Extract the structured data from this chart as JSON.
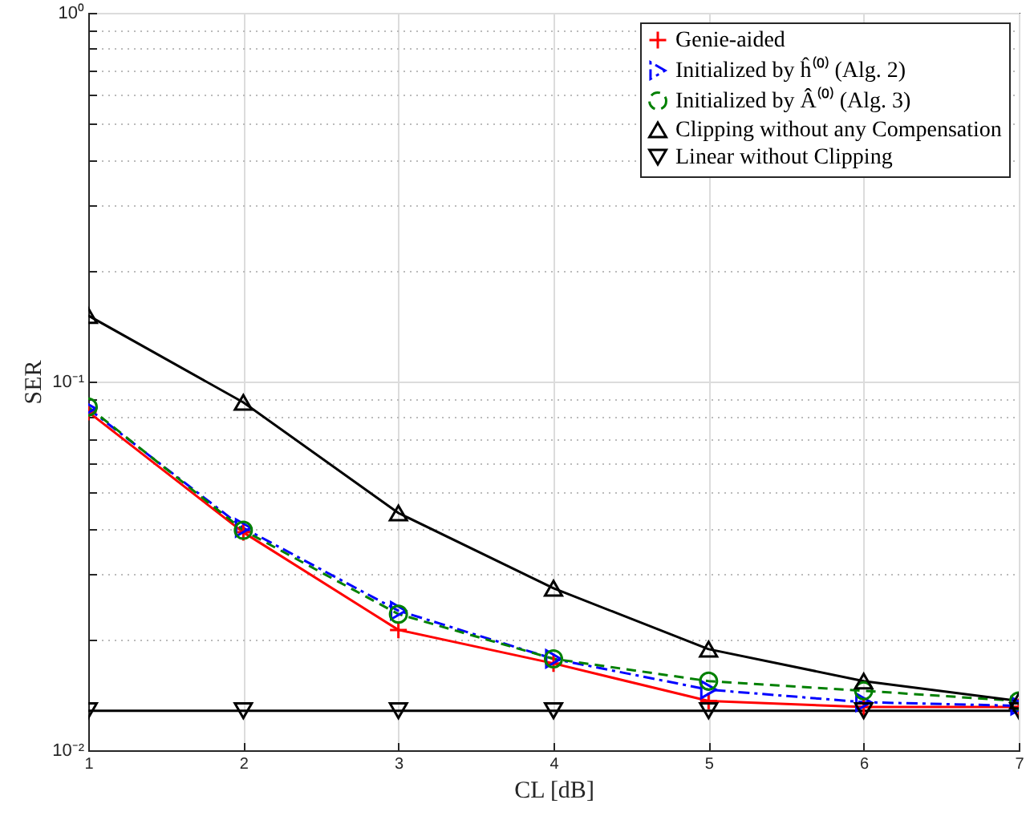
{
  "chart_data": {
    "type": "line",
    "xlabel": "CL [dB]",
    "ylabel": "SER",
    "x": [
      1,
      2,
      3,
      4,
      5,
      6,
      7
    ],
    "series": [
      {
        "name": "Genie-aided",
        "color": "#ff0000",
        "marker": "cross",
        "line_style": "solid",
        "values": [
          0.0827,
          0.039,
          0.0212,
          0.0172,
          0.0136,
          0.0131,
          0.0131
        ]
      },
      {
        "name": "Initialized by ĥ⁽⁰⁾ (Alg. 2)",
        "color": "#0000ff",
        "marker": "triangle-right",
        "line_style": "dashdot",
        "values": [
          0.0845,
          0.0401,
          0.0239,
          0.0177,
          0.0146,
          0.0135,
          0.0132
        ]
      },
      {
        "name": "Initialized by Â⁽⁰⁾ (Alg. 3)",
        "color": "#008000",
        "marker": "circle",
        "line_style": "dashed",
        "values": [
          0.0853,
          0.0395,
          0.0234,
          0.0177,
          0.0154,
          0.0145,
          0.0136
        ]
      },
      {
        "name": "Clipping without any Compensation",
        "color": "#000000",
        "marker": "triangle-up",
        "line_style": "solid",
        "values": [
          0.151,
          0.0878,
          0.044,
          0.0275,
          0.0188,
          0.0154,
          0.0136
        ]
      },
      {
        "name": "Linear without Clipping",
        "color": "#000000",
        "marker": "triangle-down",
        "line_style": "solid",
        "values": [
          0.0128,
          0.0128,
          0.0128,
          0.0128,
          0.0128,
          0.0128,
          0.0128
        ]
      }
    ],
    "xlim": [
      1,
      7
    ],
    "xticks": [
      1,
      2,
      3,
      4,
      5,
      6,
      7
    ],
    "ylim": [
      0.01,
      1
    ],
    "yticks": [
      {
        "value": 0.01,
        "label": "10⁻²"
      },
      {
        "value": 0.02,
        "label": null
      },
      {
        "value": 0.03,
        "label": null
      },
      {
        "value": 0.04,
        "label": null
      },
      {
        "value": 0.05,
        "label": null
      },
      {
        "value": 0.06,
        "label": null
      },
      {
        "value": 0.07,
        "label": null
      },
      {
        "value": 0.08,
        "label": null
      },
      {
        "value": 0.09,
        "label": null
      },
      {
        "value": 0.1,
        "label": "10⁻¹"
      },
      {
        "value": 0.2,
        "label": null
      },
      {
        "value": 0.3,
        "label": null
      },
      {
        "value": 0.4,
        "label": null
      },
      {
        "value": 0.5,
        "label": null
      },
      {
        "value": 0.6,
        "label": null
      },
      {
        "value": 0.7,
        "label": null
      },
      {
        "value": 0.8,
        "label": null
      },
      {
        "value": 0.9,
        "label": null
      },
      {
        "value": 1,
        "label": "10⁰"
      }
    ],
    "log": "y",
    "grid": true,
    "legend": "top right"
  }
}
